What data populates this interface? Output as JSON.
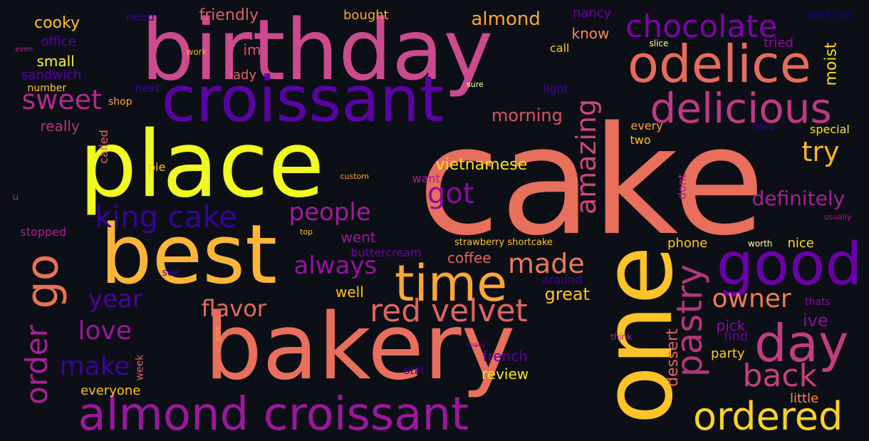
{
  "background": "#0d0f16",
  "colormap": "plasma",
  "words": [
    {
      "text": "cake",
      "color": "#e76f5c"
    },
    {
      "text": "birthday",
      "color": "#cc4a8e"
    },
    {
      "text": "place",
      "color": "#f0f921"
    },
    {
      "text": "bakery",
      "color": "#e76f5c"
    },
    {
      "text": "best",
      "color": "#fbb63a"
    },
    {
      "text": "one",
      "color": "#fdc328"
    },
    {
      "text": "croissant",
      "color": "#5a02a3"
    },
    {
      "text": "almond croissant",
      "color": "#9c179e"
    },
    {
      "text": "odelice",
      "color": "#e66c5c"
    },
    {
      "text": "good",
      "color": "#6a00a8"
    },
    {
      "text": "delicious",
      "color": "#bf3984"
    },
    {
      "text": "chocolate",
      "color": "#7e03a8"
    },
    {
      "text": "time",
      "color": "#fca636"
    },
    {
      "text": "day",
      "color": "#c13d80"
    },
    {
      "text": "ordered",
      "color": "#f8d325"
    },
    {
      "text": "pastry",
      "color": "#b5367a"
    },
    {
      "text": "red velvet",
      "color": "#e16462"
    },
    {
      "text": "go",
      "color": "#e97158"
    },
    {
      "text": "king cake",
      "color": "#350498"
    },
    {
      "text": "order",
      "color": "#a72197"
    },
    {
      "text": "back",
      "color": "#c5407e"
    },
    {
      "text": "amazing",
      "color": "#cc4778"
    },
    {
      "text": "made",
      "color": "#e9795b"
    },
    {
      "text": "people",
      "color": "#9e1c9c"
    },
    {
      "text": "got",
      "color": "#8b0aa5"
    },
    {
      "text": "always",
      "color": "#9513a1"
    },
    {
      "text": "owner",
      "color": "#ee7b51"
    },
    {
      "text": "flavor",
      "color": "#e06a63"
    },
    {
      "text": "sweet",
      "color": "#b02a8f"
    },
    {
      "text": "try",
      "color": "#fbb32f"
    },
    {
      "text": "love",
      "color": "#9c179e"
    },
    {
      "text": "make",
      "color": "#3a049a"
    },
    {
      "text": "year",
      "color": "#4c02a1"
    },
    {
      "text": "definitely",
      "color": "#a62098"
    },
    {
      "text": "vietnamese",
      "color": "#f9e221"
    },
    {
      "text": "morning",
      "color": "#d6546d"
    },
    {
      "text": "almond",
      "color": "#fca636"
    },
    {
      "text": "moist",
      "color": "#f8df25"
    },
    {
      "text": "great",
      "color": "#fdc427"
    },
    {
      "text": "dessert",
      "color": "#e16462"
    },
    {
      "text": "party",
      "color": "#fdc827"
    },
    {
      "text": "pick",
      "color": "#8b0aa5"
    },
    {
      "text": "ive",
      "color": "#8f0da4"
    },
    {
      "text": "find",
      "color": "#6a00a8"
    },
    {
      "text": "little",
      "color": "#f68f44"
    },
    {
      "text": "nice",
      "color": "#f9dc24"
    },
    {
      "text": "phone",
      "color": "#fdc328"
    },
    {
      "text": "review",
      "color": "#f7e425"
    },
    {
      "text": "french",
      "color": "#5c01a6"
    },
    {
      "text": "everyone",
      "color": "#fdc328"
    },
    {
      "text": "well",
      "color": "#fdc328"
    },
    {
      "text": "coffee",
      "color": "#e16462"
    },
    {
      "text": "buttercream",
      "color": "#6a00a8"
    },
    {
      "text": "went",
      "color": "#9c179e"
    },
    {
      "text": "friendly",
      "color": "#de5f65"
    },
    {
      "text": "bought",
      "color": "#fca636"
    },
    {
      "text": "lady",
      "color": "#e16462"
    },
    {
      "text": "im",
      "color": "#d8576b"
    },
    {
      "text": "nancy",
      "color": "#6a00a8"
    },
    {
      "text": "know",
      "color": "#f4895b"
    },
    {
      "text": "call",
      "color": "#fdc527"
    },
    {
      "text": "slice",
      "color": "#fcffa4"
    },
    {
      "text": "tried",
      "color": "#8f0da4"
    },
    {
      "text": "parking",
      "color": "#0d0887"
    },
    {
      "text": "cooky",
      "color": "#fdc328"
    },
    {
      "text": "office",
      "color": "#5302a3"
    },
    {
      "text": "small",
      "color": "#fdf525"
    },
    {
      "text": "sandwich",
      "color": "#5a02a3"
    },
    {
      "text": "number",
      "color": "#fdca26"
    },
    {
      "text": "shop",
      "color": "#fca338"
    },
    {
      "text": "next",
      "color": "#350498"
    },
    {
      "text": "need",
      "color": "#350498"
    },
    {
      "text": "work",
      "color": "#fca636"
    },
    {
      "text": "even",
      "color": "#b12a90"
    },
    {
      "text": "really",
      "color": "#b5367a"
    },
    {
      "text": "called",
      "color": "#e16462"
    },
    {
      "text": "pie",
      "color": "#fdc328"
    },
    {
      "text": "custom",
      "color": "#fca636"
    },
    {
      "text": "want",
      "color": "#a62098"
    },
    {
      "text": "u",
      "color": "#a62098"
    },
    {
      "text": "stopped",
      "color": "#a62098"
    },
    {
      "text": "top",
      "color": "#fdc328"
    },
    {
      "text": "strawberry shortcake",
      "color": "#fdc328"
    },
    {
      "text": "see",
      "color": "#3a049a"
    },
    {
      "text": "around",
      "color": "#3a049a"
    },
    {
      "text": "sure",
      "color": "#fcffa4"
    },
    {
      "text": "light",
      "color": "#3a049a"
    },
    {
      "text": "every",
      "color": "#fca636"
    },
    {
      "text": "two",
      "color": "#fdc328"
    },
    {
      "text": "filling",
      "color": "#3a049a"
    },
    {
      "text": "special",
      "color": "#f9e221"
    },
    {
      "text": "dont",
      "color": "#a62098"
    },
    {
      "text": "usually",
      "color": "#9c179e"
    },
    {
      "text": "worth",
      "color": "#fcffa4"
    },
    {
      "text": "thats",
      "color": "#8b0aa5"
    },
    {
      "text": "think",
      "color": "#b12a90"
    },
    {
      "text": "many",
      "color": "#6a00a8"
    },
    {
      "text": "give",
      "color": "#fca636"
    },
    {
      "text": "week",
      "color": "#e16462"
    },
    {
      "text": "still",
      "color": "#3a049a"
    }
  ]
}
